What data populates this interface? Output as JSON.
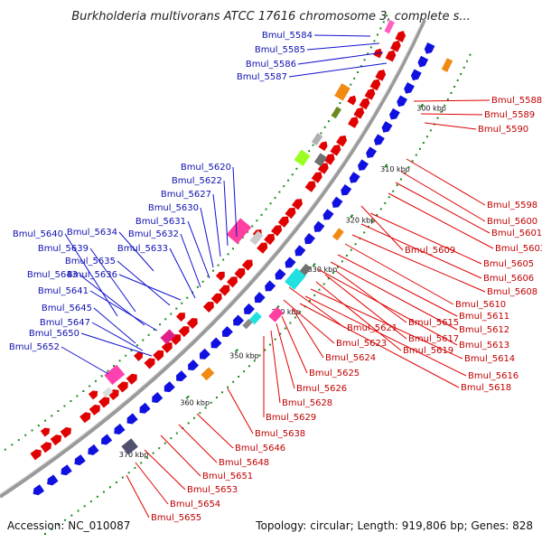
{
  "title": "Burkholderia multivorans ATCC 17616 chromosome 3, complete s...",
  "accession": "Accession: NC_010087",
  "summary": "Topology: circular; Length: 919,806 bp; Genes: 828",
  "colors": {
    "blue_label": "#1010b0",
    "red_label": "#c00000",
    "forward_gene": "#1010e0",
    "reverse_gene": "#e00000",
    "gc_dot": "#1a8a1a"
  },
  "ticks": [
    "300 kbp",
    "310 kbp",
    "320 kbp",
    "330 kbp",
    "340 kbp",
    "350 kbp",
    "360 kbp",
    "370 kbp"
  ],
  "blue_labels": [
    "Bmul_5584",
    "Bmul_5585",
    "Bmul_5586",
    "Bmul_5587",
    "Bmul_5620",
    "Bmul_5622",
    "Bmul_5627",
    "Bmul_5630",
    "Bmul_5631",
    "Bmul_5632",
    "Bmul_5633",
    "Bmul_5634",
    "Bmul_5640",
    "Bmul_5639",
    "Bmul_5635",
    "Bmul_5636",
    "Bmul_5643",
    "Bmul_5641",
    "Bmul_5645",
    "Bmul_5647",
    "Bmul_5650",
    "Bmul_5652"
  ],
  "red_labels": [
    "Bmul_5588",
    "Bmul_5589",
    "Bmul_5590",
    "Bmul_5598",
    "Bmul_5600",
    "Bmul_5601",
    "Bmul_5603",
    "Bmul_5609",
    "Bmul_5605",
    "Bmul_5606",
    "Bmul_5608",
    "Bmul_5610",
    "Bmul_5611",
    "Bmul_5612",
    "Bmul_5615",
    "Bmul_5621",
    "Bmul_5617",
    "Bmul_5613",
    "Bmul_5623",
    "Bmul_5619",
    "Bmul_5614",
    "Bmul_5624",
    "Bmul_5616",
    "Bmul_5625",
    "Bmul_5618",
    "Bmul_5626",
    "Bmul_5628",
    "Bmul_5629",
    "Bmul_5638",
    "Bmul_5646",
    "Bmul_5648",
    "Bmul_5651",
    "Bmul_5653",
    "Bmul_5654",
    "Bmul_5655"
  ]
}
